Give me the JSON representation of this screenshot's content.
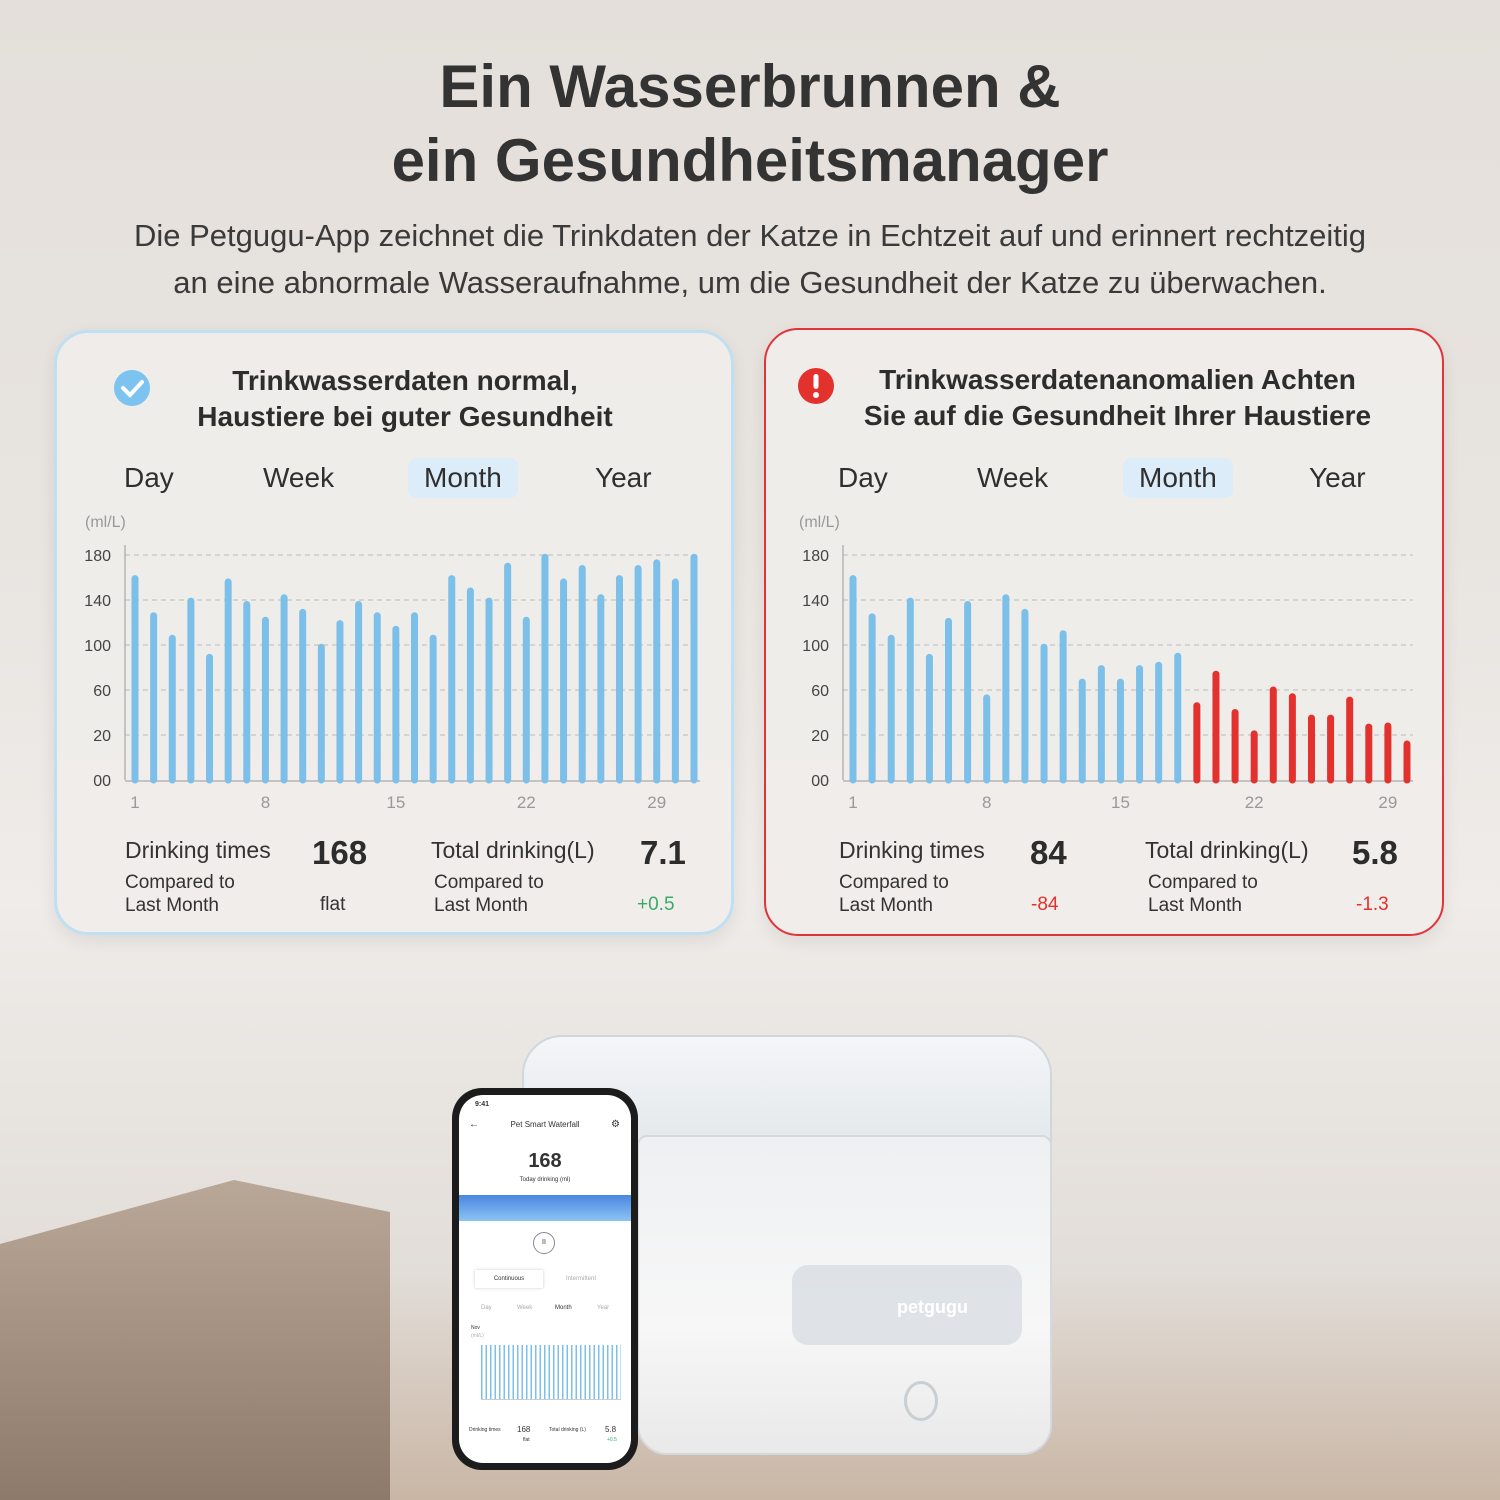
{
  "header": {
    "title_line1": "Ein Wasserbrunnen &",
    "title_line2": "ein Gesundheitsmanager",
    "subtitle_line1": "Die Petgugu-App zeichnet die Trinkdaten der Katze in Echtzeit auf und erinnert rechtzeitig",
    "subtitle_line2": "an eine abnormale Wasseraufnahme, um die Gesundheit der Katze zu überwachen."
  },
  "cards": [
    {
      "status_icon": "check-circle-icon",
      "status_color": "#7cc3ef",
      "title_line1": "Trinkwasserdaten normal,",
      "title_line2": "Haustiere bei guter Gesundheit",
      "tabs": [
        "Day",
        "Week",
        "Month",
        "Year"
      ],
      "selected_tab": "Month",
      "drinking_times_label": "Drinking times",
      "drinking_times": "168",
      "total_label": "Total drinking(L)",
      "total": "7.1",
      "compared_line1": "Compared to",
      "compared_line2": "Last Month",
      "times_delta": "flat",
      "total_delta": "+0.5",
      "total_delta_color": "#3aaa6a"
    },
    {
      "status_icon": "exclamation-circle-icon",
      "status_color": "#e3312d",
      "title_line1": "Trinkwasserdatenanomalien Achten",
      "title_line2": "Sie auf die Gesundheit Ihrer Haustiere",
      "tabs": [
        "Day",
        "Week",
        "Month",
        "Year"
      ],
      "selected_tab": "Month",
      "drinking_times_label": "Drinking times",
      "drinking_times": "84",
      "total_label": "Total drinking(L)",
      "total": "5.8",
      "compared_line1": "Compared to",
      "compared_line2": "Last Month",
      "times_delta": "-84",
      "total_delta": "-1.3",
      "times_delta_color": "#e3312d",
      "total_delta_color": "#e3312d"
    }
  ],
  "chart_data": [
    {
      "type": "bar",
      "ylabel": "(ml/L)",
      "yticks": [
        "00",
        "20",
        "60",
        "100",
        "140",
        "180"
      ],
      "ytick_values": [
        0,
        20,
        60,
        100,
        140,
        180
      ],
      "xticks": [
        "1",
        "8",
        "15",
        "22",
        "29"
      ],
      "grid": true,
      "series": [
        {
          "color": "#7cbfe8",
          "x": [
            1,
            2,
            3,
            4,
            5,
            6,
            7,
            8,
            9,
            10,
            11,
            12,
            13,
            14,
            15,
            16,
            17,
            18,
            19,
            20,
            21,
            22,
            23,
            24,
            25,
            26,
            27,
            28,
            29,
            30,
            31
          ],
          "values": [
            159,
            126,
            106,
            139,
            89,
            156,
            136,
            122,
            142,
            129,
            98,
            119,
            136,
            126,
            114,
            126,
            106,
            159,
            148,
            139,
            170,
            122,
            178,
            156,
            168,
            142,
            159,
            168,
            173,
            156,
            178
          ]
        }
      ]
    },
    {
      "type": "bar",
      "ylabel": "(ml/L)",
      "yticks": [
        "00",
        "20",
        "60",
        "100",
        "140",
        "180"
      ],
      "ytick_values": [
        0,
        20,
        60,
        100,
        140,
        180
      ],
      "xticks": [
        "1",
        "8",
        "15",
        "22",
        "29"
      ],
      "grid": true,
      "series": [
        {
          "color": "#7cbfe8",
          "x": [
            1,
            2,
            3,
            4,
            5,
            6,
            7,
            8,
            9,
            10,
            11,
            12,
            13,
            14,
            15,
            16,
            17,
            18
          ],
          "values": [
            159,
            125,
            106,
            139,
            89,
            121,
            136,
            53,
            142,
            129,
            98,
            110,
            67,
            79,
            67,
            79,
            82,
            90
          ]
        },
        {
          "color": "#e3312d",
          "x": [
            19,
            20,
            21,
            22,
            23,
            24,
            25,
            26,
            27,
            28,
            29,
            30
          ],
          "values": [
            46,
            74,
            40,
            21,
            60,
            54,
            35,
            35,
            51,
            27,
            28,
            16
          ]
        }
      ]
    }
  ],
  "phone": {
    "time": "9:41",
    "title": "Pet Smart Waterfall",
    "big_value": "168",
    "big_label": "Today drinking (ml)",
    "mode1": "Continuous",
    "mode2": "Intermittent",
    "tabs": [
      "Day",
      "Week",
      "Month",
      "Year"
    ],
    "month": "Nov",
    "unit": "(ml/L)",
    "times_label": "Drinking times",
    "times": "168",
    "times_delta": "flat",
    "total_label": "Total drinking (L)",
    "total": "5.8",
    "total_delta": "+0.5"
  },
  "product": {
    "brand": "petgugu"
  }
}
